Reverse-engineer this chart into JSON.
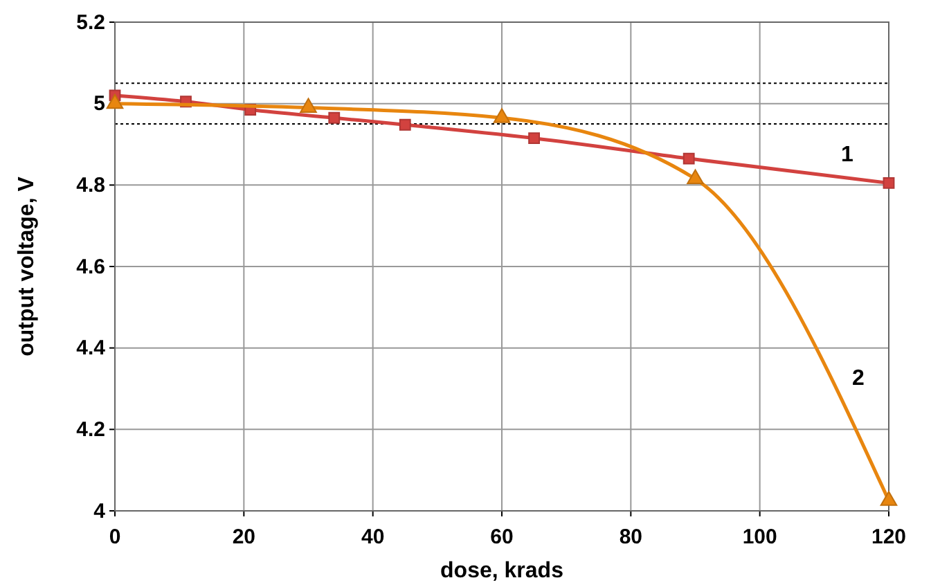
{
  "chart_data": {
    "type": "line",
    "xlabel": "dose, krads",
    "ylabel": "output voltage, V",
    "xlim": [
      0,
      120
    ],
    "xticks": [
      0,
      20,
      40,
      60,
      80,
      100,
      120
    ],
    "ylim": [
      4,
      5.2
    ],
    "yticks": [
      4,
      4.2,
      4.4,
      4.6,
      4.8,
      5,
      5.2
    ],
    "grid": true,
    "series": [
      {
        "name": "1",
        "color": "#d2423f",
        "marker": "square",
        "x": [
          0,
          11,
          21,
          34,
          45,
          65,
          89,
          120
        ],
        "values": [
          5.02,
          5.005,
          4.985,
          4.965,
          4.948,
          4.915,
          4.865,
          4.805
        ]
      },
      {
        "name": "2",
        "color": "#e8860f",
        "marker": "triangle",
        "x": [
          0,
          30,
          60,
          90,
          120
        ],
        "values": [
          5.0,
          4.99,
          4.965,
          4.815,
          4.025
        ]
      }
    ],
    "ref_lines": [
      {
        "axis": "y",
        "value": 5.05,
        "line_style": "dotted",
        "color": "#000000"
      },
      {
        "axis": "y",
        "value": 4.95,
        "line_style": "dotted",
        "color": "#000000"
      }
    ]
  }
}
